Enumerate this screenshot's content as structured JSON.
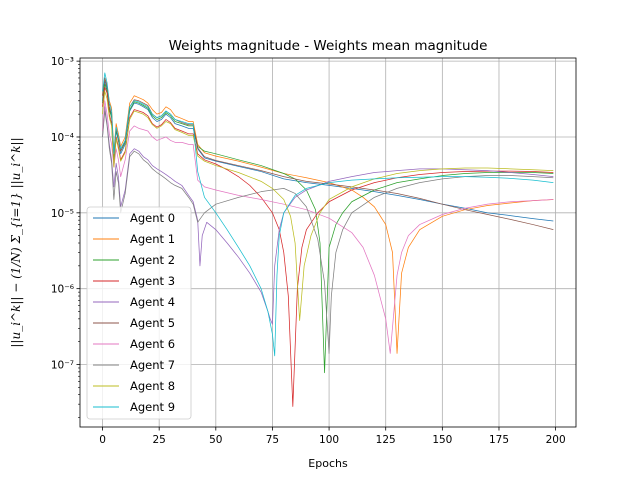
{
  "chart_data": {
    "type": "line",
    "title": "Weights magnitude - Weights mean magnitude",
    "xlabel": "Epochs",
    "ylabel": "||u_i^k|| − (1/N) Σ_{i=1} ||u_i^k||",
    "yscale": "log",
    "xlim": [
      -9.95,
      209
    ],
    "ylim": [
      1.5e-08,
      0.0011
    ],
    "grid": true,
    "legend_location": "lower left",
    "xticks": [
      0,
      25,
      50,
      75,
      100,
      125,
      150,
      175,
      200
    ],
    "yticks": [
      1e-07,
      1e-06,
      1e-05,
      0.0001,
      0.001
    ],
    "ytick_labels": [
      "10⁻⁷",
      "10⁻⁶",
      "10⁻⁵",
      "10⁻⁴",
      "10⁻³"
    ],
    "series": [
      {
        "name": "Agent 0",
        "color": "#1f77b4",
        "x": [
          0,
          1,
          2,
          3,
          4,
          5,
          6,
          7,
          8,
          10,
          12,
          14,
          16,
          18,
          20,
          22,
          24,
          26,
          28,
          30,
          32,
          35,
          38,
          40,
          42,
          45,
          50,
          60,
          70,
          80,
          90,
          100,
          110,
          120,
          130,
          140,
          150,
          160,
          170,
          180,
          190,
          199
        ],
        "y": [
          0.0003,
          0.00055,
          0.00042,
          0.00024,
          0.00019,
          5e-05,
          0.00012,
          9e-05,
          6e-05,
          8e-05,
          0.00022,
          0.00028,
          0.00027,
          0.00025,
          0.00023,
          0.00018,
          0.00016,
          0.00017,
          0.0002,
          0.00018,
          0.00015,
          0.00014,
          0.00013,
          0.00013,
          7e-05,
          5.3e-05,
          4.8e-05,
          4.1e-05,
          3.5e-05,
          2.8e-05,
          2.5e-05,
          2.3e-05,
          2.1e-05,
          1.9e-05,
          1.7e-05,
          1.5e-05,
          1.3e-05,
          1.15e-05,
          1e-05,
          9.2e-06,
          8.4e-06,
          7.8e-06
        ]
      },
      {
        "name": "Agent 1",
        "color": "#ff7f0e",
        "x": [
          0,
          1,
          2,
          3,
          4,
          5,
          6,
          7,
          8,
          10,
          12,
          14,
          16,
          18,
          20,
          22,
          24,
          26,
          28,
          30,
          32,
          35,
          38,
          40,
          42,
          45,
          50,
          60,
          70,
          80,
          85,
          90,
          100,
          110,
          115,
          120,
          125,
          128,
          130,
          132,
          135,
          140,
          150,
          160,
          170,
          180,
          190,
          199
        ],
        "y": [
          0.00035,
          0.0006,
          0.00048,
          0.0003,
          0.00024,
          6.5e-05,
          0.00015,
          0.00011,
          7.5e-05,
          0.0001,
          0.00028,
          0.00035,
          0.00033,
          0.00031,
          0.00028,
          0.00023,
          0.0002,
          0.00021,
          0.00025,
          0.00023,
          0.00019,
          0.000175,
          0.00016,
          0.00016,
          8e-05,
          6.2e-05,
          5.6e-05,
          4.8e-05,
          4e-05,
          3.3e-05,
          3.1e-05,
          2.9e-05,
          2.5e-05,
          2e-05,
          1.6e-05,
          1.2e-05,
          7e-06,
          3e-06,
          1.4e-07,
          1.6e-06,
          3.5e-06,
          6e-06,
          9e-06,
          1.1e-05,
          1.25e-05,
          1.35e-05,
          1.45e-05,
          1.5e-05
        ]
      },
      {
        "name": "Agent 2",
        "color": "#2ca02c",
        "x": [
          0,
          1,
          2,
          3,
          4,
          5,
          6,
          7,
          8,
          10,
          12,
          14,
          16,
          18,
          20,
          22,
          24,
          26,
          28,
          30,
          32,
          35,
          38,
          40,
          42,
          45,
          50,
          60,
          70,
          80,
          85,
          90,
          94,
          96,
          98,
          100,
          103,
          106,
          110,
          120,
          130,
          140,
          150,
          160,
          170,
          180,
          190,
          199
        ],
        "y": [
          0.00028,
          0.0005,
          0.0004,
          0.00023,
          0.00018,
          5.5e-05,
          0.000125,
          9e-05,
          6.5e-05,
          8.5e-05,
          0.00023,
          0.00029,
          0.00028,
          0.00026,
          0.00024,
          0.00019,
          0.00017,
          0.00018,
          0.00021,
          0.00019,
          0.00016,
          0.00015,
          0.00014,
          0.00014,
          7.5e-05,
          6.5e-05,
          6e-05,
          5e-05,
          4.2e-05,
          3.3e-05,
          2.8e-05,
          2e-05,
          1.1e-05,
          4e-06,
          7.8e-08,
          3.5e-06,
          7e-06,
          1e-05,
          1.4e-05,
          2e-05,
          2.5e-05,
          2.8e-05,
          3.1e-05,
          3.3e-05,
          3.4e-05,
          3.4e-05,
          3.4e-05,
          3.3e-05
        ]
      },
      {
        "name": "Agent 3",
        "color": "#d62728",
        "x": [
          0,
          1,
          2,
          3,
          4,
          5,
          6,
          7,
          8,
          10,
          12,
          14,
          16,
          18,
          20,
          22,
          24,
          26,
          28,
          30,
          32,
          35,
          38,
          40,
          42,
          45,
          50,
          55,
          60,
          65,
          70,
          75,
          78,
          80,
          82,
          84,
          86,
          88,
          90,
          95,
          100,
          110,
          120,
          130,
          140,
          150,
          160,
          170,
          180,
          190,
          199
        ],
        "y": [
          0.00025,
          0.00045,
          0.00038,
          0.0002,
          0.00015,
          4e-05,
          0.0001,
          7.5e-05,
          5e-05,
          6.5e-05,
          0.00018,
          0.00023,
          0.00022,
          0.00021,
          0.00019,
          0.00015,
          0.000135,
          0.000145,
          0.00017,
          0.000155,
          0.00013,
          0.00012,
          0.00011,
          0.00011,
          6e-05,
          5e-05,
          4.4e-05,
          3.7e-05,
          3e-05,
          2.3e-05,
          1.6e-05,
          1e-05,
          6e-06,
          3e-06,
          8e-07,
          2.8e-08,
          1e-06,
          3.5e-06,
          6e-06,
          1e-05,
          1.4e-05,
          2e-05,
          2.5e-05,
          2.9e-05,
          3.2e-05,
          3.4e-05,
          3.5e-05,
          3.55e-05,
          3.55e-05,
          3.5e-05,
          3.4e-05
        ]
      },
      {
        "name": "Agent 4",
        "color": "#9467bd",
        "x": [
          0,
          1,
          2,
          3,
          4,
          5,
          6,
          7,
          8,
          10,
          12,
          14,
          16,
          18,
          20,
          22,
          24,
          26,
          28,
          30,
          32,
          35,
          38,
          40,
          42,
          43,
          44,
          46,
          50,
          55,
          60,
          65,
          70,
          73,
          74,
          75,
          76,
          78,
          80,
          85,
          90,
          100,
          110,
          120,
          130,
          140,
          150,
          160,
          170,
          180,
          190,
          199
        ],
        "y": [
          0.0001,
          0.00025,
          0.00015,
          8e-05,
          5e-05,
          2.2e-05,
          4.5e-05,
          3e-05,
          1.2e-05,
          2e-05,
          6e-05,
          7e-05,
          6.5e-05,
          5.5e-05,
          5e-05,
          4.2e-05,
          3.8e-05,
          3.5e-05,
          3.2e-05,
          2.9e-05,
          2.6e-05,
          2.3e-05,
          1.7e-05,
          1.4e-05,
          8e-06,
          2e-06,
          5e-06,
          7.5e-06,
          6e-06,
          4e-06,
          2.6e-06,
          1.6e-06,
          9e-07,
          5e-07,
          4e-07,
          3.4e-07,
          2e-06,
          6e-06,
          1e-05,
          1.6e-05,
          2e-05,
          2.6e-05,
          3e-05,
          3.4e-05,
          3.6e-05,
          3.8e-05,
          3.8e-05,
          3.7e-05,
          3.6e-05,
          3.4e-05,
          3.2e-05,
          3e-05
        ]
      },
      {
        "name": "Agent 5",
        "color": "#8c564b",
        "x": [
          0,
          1,
          2,
          3,
          4,
          5,
          6,
          7,
          8,
          10,
          12,
          14,
          16,
          18,
          20,
          22,
          24,
          26,
          28,
          30,
          32,
          35,
          38,
          40,
          42,
          45,
          50,
          60,
          70,
          80,
          90,
          100,
          110,
          120,
          130,
          140,
          150,
          160,
          170,
          180,
          190,
          199
        ],
        "y": [
          0.00035,
          0.0006,
          0.00046,
          0.00025,
          0.0002,
          5.8e-05,
          0.00013,
          9.5e-05,
          6.5e-05,
          9e-05,
          0.00025,
          0.00031,
          0.0003,
          0.00028,
          0.00026,
          0.0002,
          0.00018,
          0.00019,
          0.00022,
          0.0002,
          0.00017,
          0.000155,
          0.000145,
          0.000145,
          7.2e-05,
          5.5e-05,
          4.9e-05,
          4.2e-05,
          3.6e-05,
          3e-05,
          2.6e-05,
          2.4e-05,
          2.2e-05,
          2e-05,
          1.8e-05,
          1.55e-05,
          1.3e-05,
          1.1e-05,
          9.5e-06,
          8.2e-06,
          7e-06,
          6e-06
        ]
      },
      {
        "name": "Agent 6",
        "color": "#e377c2",
        "x": [
          0,
          1,
          2,
          3,
          4,
          5,
          6,
          7,
          8,
          10,
          12,
          14,
          16,
          18,
          20,
          22,
          24,
          26,
          28,
          30,
          32,
          35,
          38,
          40,
          42,
          45,
          50,
          60,
          70,
          80,
          90,
          100,
          110,
          115,
          120,
          125,
          127,
          130,
          132,
          135,
          140,
          150,
          160,
          170,
          180,
          190,
          199
        ],
        "y": [
          0.00012,
          0.0003,
          0.0002,
          0.00011,
          8e-05,
          4e-05,
          7e-05,
          5e-05,
          3e-05,
          5e-05,
          0.00012,
          0.00014,
          0.00013,
          0.000125,
          0.00012,
          0.0001,
          9e-05,
          9.5e-05,
          0.0001,
          9e-05,
          8.5e-05,
          8.5e-05,
          8e-05,
          8e-05,
          2.7e-05,
          2.2e-05,
          2e-05,
          1.7e-05,
          1.5e-05,
          1.3e-05,
          1.1e-05,
          8.5e-06,
          5.5e-06,
          3.5e-06,
          1.5e-06,
          4e-07,
          1.4e-07,
          1.5e-06,
          3e-06,
          5e-06,
          7e-06,
          9.5e-06,
          1.15e-05,
          1.3e-05,
          1.4e-05,
          1.45e-05,
          1.5e-05
        ]
      },
      {
        "name": "Agent 7",
        "color": "#7f7f7f",
        "x": [
          0,
          1,
          2,
          3,
          4,
          5,
          6,
          7,
          8,
          10,
          12,
          14,
          16,
          18,
          20,
          22,
          24,
          26,
          28,
          30,
          32,
          35,
          38,
          40,
          42,
          45,
          50,
          60,
          70,
          80,
          85,
          90,
          95,
          98,
          100,
          101,
          103,
          106,
          110,
          120,
          130,
          140,
          150,
          160,
          170,
          180,
          190,
          199
        ],
        "y": [
          0.0001,
          0.00022,
          0.00014,
          7e-05,
          4.5e-05,
          1.5e-05,
          3.5e-05,
          2.5e-05,
          1e-05,
          1.8e-05,
          5.5e-05,
          6.5e-05,
          6e-05,
          5e-05,
          4.5e-05,
          3.8e-05,
          3.4e-05,
          3.1e-05,
          2.8e-05,
          2.5e-05,
          2.3e-05,
          2.1e-05,
          1.6e-05,
          1.3e-05,
          7.5e-06,
          1e-05,
          1.3e-05,
          1.6e-05,
          1.9e-05,
          2.1e-05,
          1.8e-05,
          1.2e-05,
          4.5e-06,
          1.2e-06,
          1.4e-07,
          8e-07,
          3e-06,
          6e-06,
          1e-05,
          1.6e-05,
          2.1e-05,
          2.5e-05,
          2.8e-05,
          3e-05,
          3.1e-05,
          3.1e-05,
          3e-05,
          2.9e-05
        ]
      },
      {
        "name": "Agent 8",
        "color": "#bcbd22",
        "x": [
          0,
          1,
          2,
          3,
          4,
          5,
          6,
          7,
          8,
          10,
          12,
          14,
          16,
          18,
          20,
          22,
          24,
          26,
          28,
          30,
          32,
          35,
          38,
          40,
          42,
          45,
          50,
          60,
          70,
          75,
          80,
          83,
          85,
          86,
          87,
          89,
          92,
          96,
          100,
          110,
          120,
          130,
          140,
          150,
          160,
          170,
          180,
          190,
          199
        ],
        "y": [
          0.0002,
          0.0004,
          0.00032,
          0.00018,
          0.00014,
          4e-05,
          9.5e-05,
          7e-05,
          4.8e-05,
          6.2e-05,
          0.00017,
          0.00022,
          0.00021,
          0.0002,
          0.00018,
          0.000145,
          0.00013,
          0.00014,
          0.00016,
          0.00015,
          0.000125,
          0.000115,
          0.000105,
          0.000105,
          5.6e-05,
          4.8e-05,
          4.2e-05,
          3.4e-05,
          2.6e-05,
          2.1e-05,
          1.5e-05,
          9e-06,
          4e-06,
          1.2e-06,
          3.8e-07,
          2e-06,
          5e-06,
          1e-05,
          1.5e-05,
          2.2e-05,
          2.8e-05,
          3.3e-05,
          3.6e-05,
          3.8e-05,
          3.9e-05,
          3.9e-05,
          3.8e-05,
          3.7e-05,
          3.6e-05
        ]
      },
      {
        "name": "Agent 9",
        "color": "#17becf",
        "x": [
          0,
          1,
          2,
          3,
          4,
          5,
          6,
          7,
          8,
          10,
          12,
          14,
          16,
          18,
          20,
          22,
          24,
          26,
          28,
          30,
          32,
          35,
          38,
          40,
          42,
          45,
          50,
          55,
          60,
          65,
          70,
          73,
          75,
          76,
          77,
          78,
          80,
          85,
          90,
          100,
          110,
          120,
          130,
          140,
          150,
          160,
          170,
          180,
          190,
          199
        ],
        "y": [
          0.0004,
          0.0007,
          0.00052,
          0.00028,
          0.00022,
          6e-05,
          0.000135,
          0.0001,
          7e-05,
          9e-05,
          0.00025,
          0.0003,
          0.00029,
          0.00027,
          0.00025,
          0.0002,
          0.00018,
          0.00019,
          0.00022,
          0.0002,
          0.00017,
          0.00016,
          0.00015,
          0.00015,
          3.5e-05,
          1.6e-05,
          1e-05,
          6e-06,
          3.5e-06,
          2e-06,
          1e-06,
          5e-07,
          2.5e-07,
          1.3e-07,
          1.5e-06,
          5e-06,
          1e-05,
          1.7e-05,
          2.1e-05,
          2.5e-05,
          2.7e-05,
          2.8e-05,
          2.9e-05,
          2.95e-05,
          3e-05,
          3e-05,
          2.95e-05,
          2.85e-05,
          2.7e-05,
          2.5e-05
        ]
      }
    ]
  }
}
